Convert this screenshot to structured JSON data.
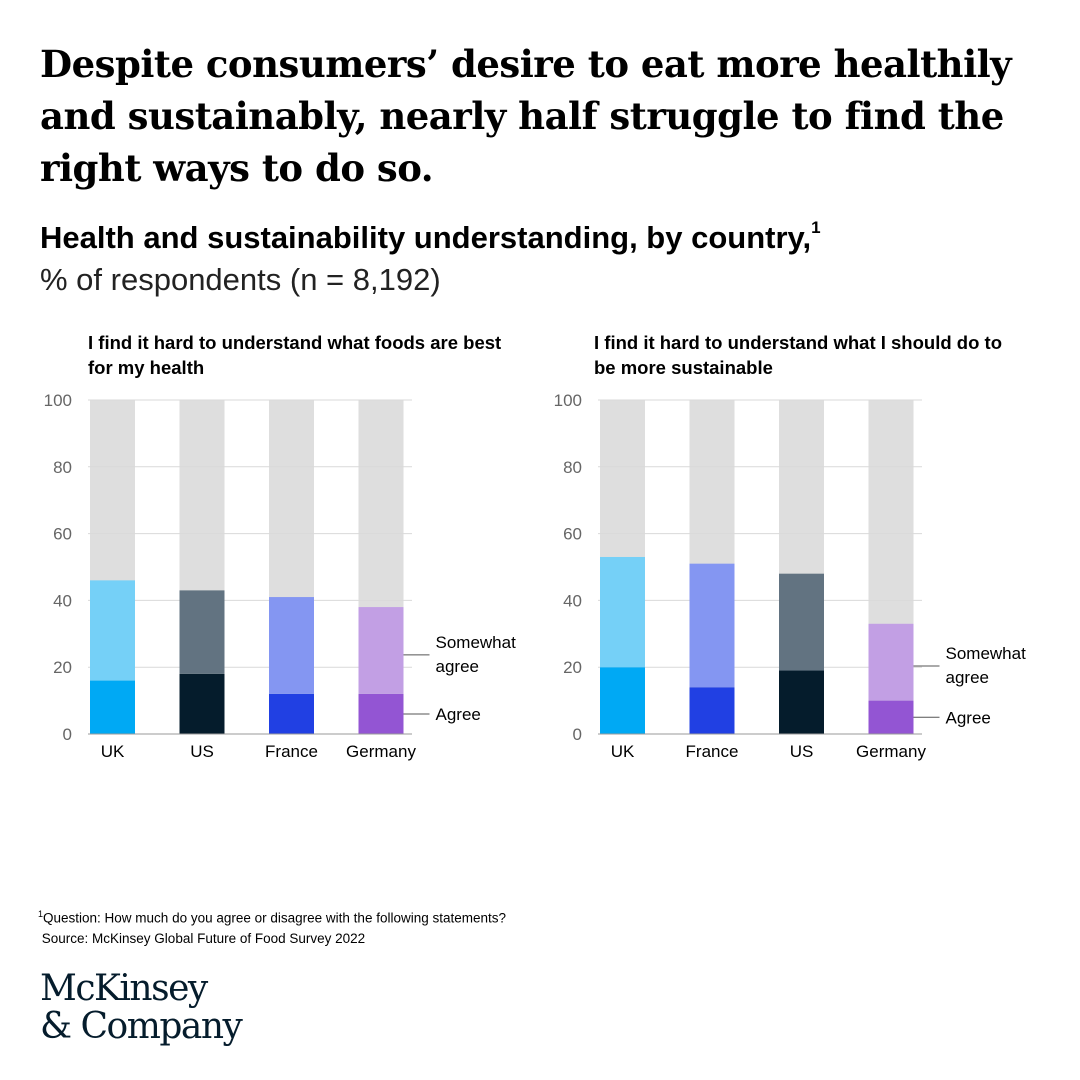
{
  "headline": "Despite consumers’ desire to eat more healthily and sustainably, nearly half struggle to find the right ways to do so.",
  "subtitle": "Health and sustainability understanding, by country,",
  "subtitle_note_marker": "1",
  "unit": "% of respondents (n = 8,192)",
  "legend": {
    "somewhat_agree": [
      "Somewhat",
      "agree"
    ],
    "agree": "Agree"
  },
  "colors": {
    "background_bar": "#dedede",
    "gridline": "#d9d9d9",
    "UK": {
      "agree": "#00a9f4",
      "somewhat": "#75d0f7"
    },
    "US": {
      "agree": "#051c2c",
      "somewhat": "#627381"
    },
    "France": {
      "agree": "#2140e3",
      "somewhat": "#8496f2"
    },
    "Germany": {
      "agree": "#9355d3",
      "somewhat": "#c29fe4"
    }
  },
  "chart_data": [
    {
      "type": "bar",
      "stacked": true,
      "title": "I find it hard to understand what foods are best for my health",
      "categories": [
        "UK",
        "US",
        "France",
        "Germany"
      ],
      "series": [
        {
          "name": "Agree",
          "values": [
            16,
            18,
            12,
            12
          ]
        },
        {
          "name": "Somewhat agree",
          "values": [
            30,
            25,
            29,
            26
          ]
        }
      ],
      "ylim": [
        0,
        100
      ],
      "yticks": [
        0,
        20,
        40,
        60,
        80,
        100
      ],
      "grid": true,
      "legend_placement": "right"
    },
    {
      "type": "bar",
      "stacked": true,
      "title": "I find it hard to understand what I should do to be more sustainable",
      "categories": [
        "UK",
        "France",
        "US",
        "Germany"
      ],
      "series": [
        {
          "name": "Agree",
          "values": [
            20,
            14,
            19,
            10
          ]
        },
        {
          "name": "Somewhat agree",
          "values": [
            33,
            37,
            29,
            23
          ]
        }
      ],
      "ylim": [
        0,
        100
      ],
      "yticks": [
        0,
        20,
        40,
        60,
        80,
        100
      ],
      "grid": true,
      "legend_placement": "right"
    }
  ],
  "footnote": {
    "marker": "1",
    "question": "Question: How much do you agree or disagree with the following statements?",
    "source": "Source: McKinsey Global Future of Food Survey 2022"
  },
  "logo": {
    "line1": "McKinsey",
    "line2": "& Company"
  }
}
